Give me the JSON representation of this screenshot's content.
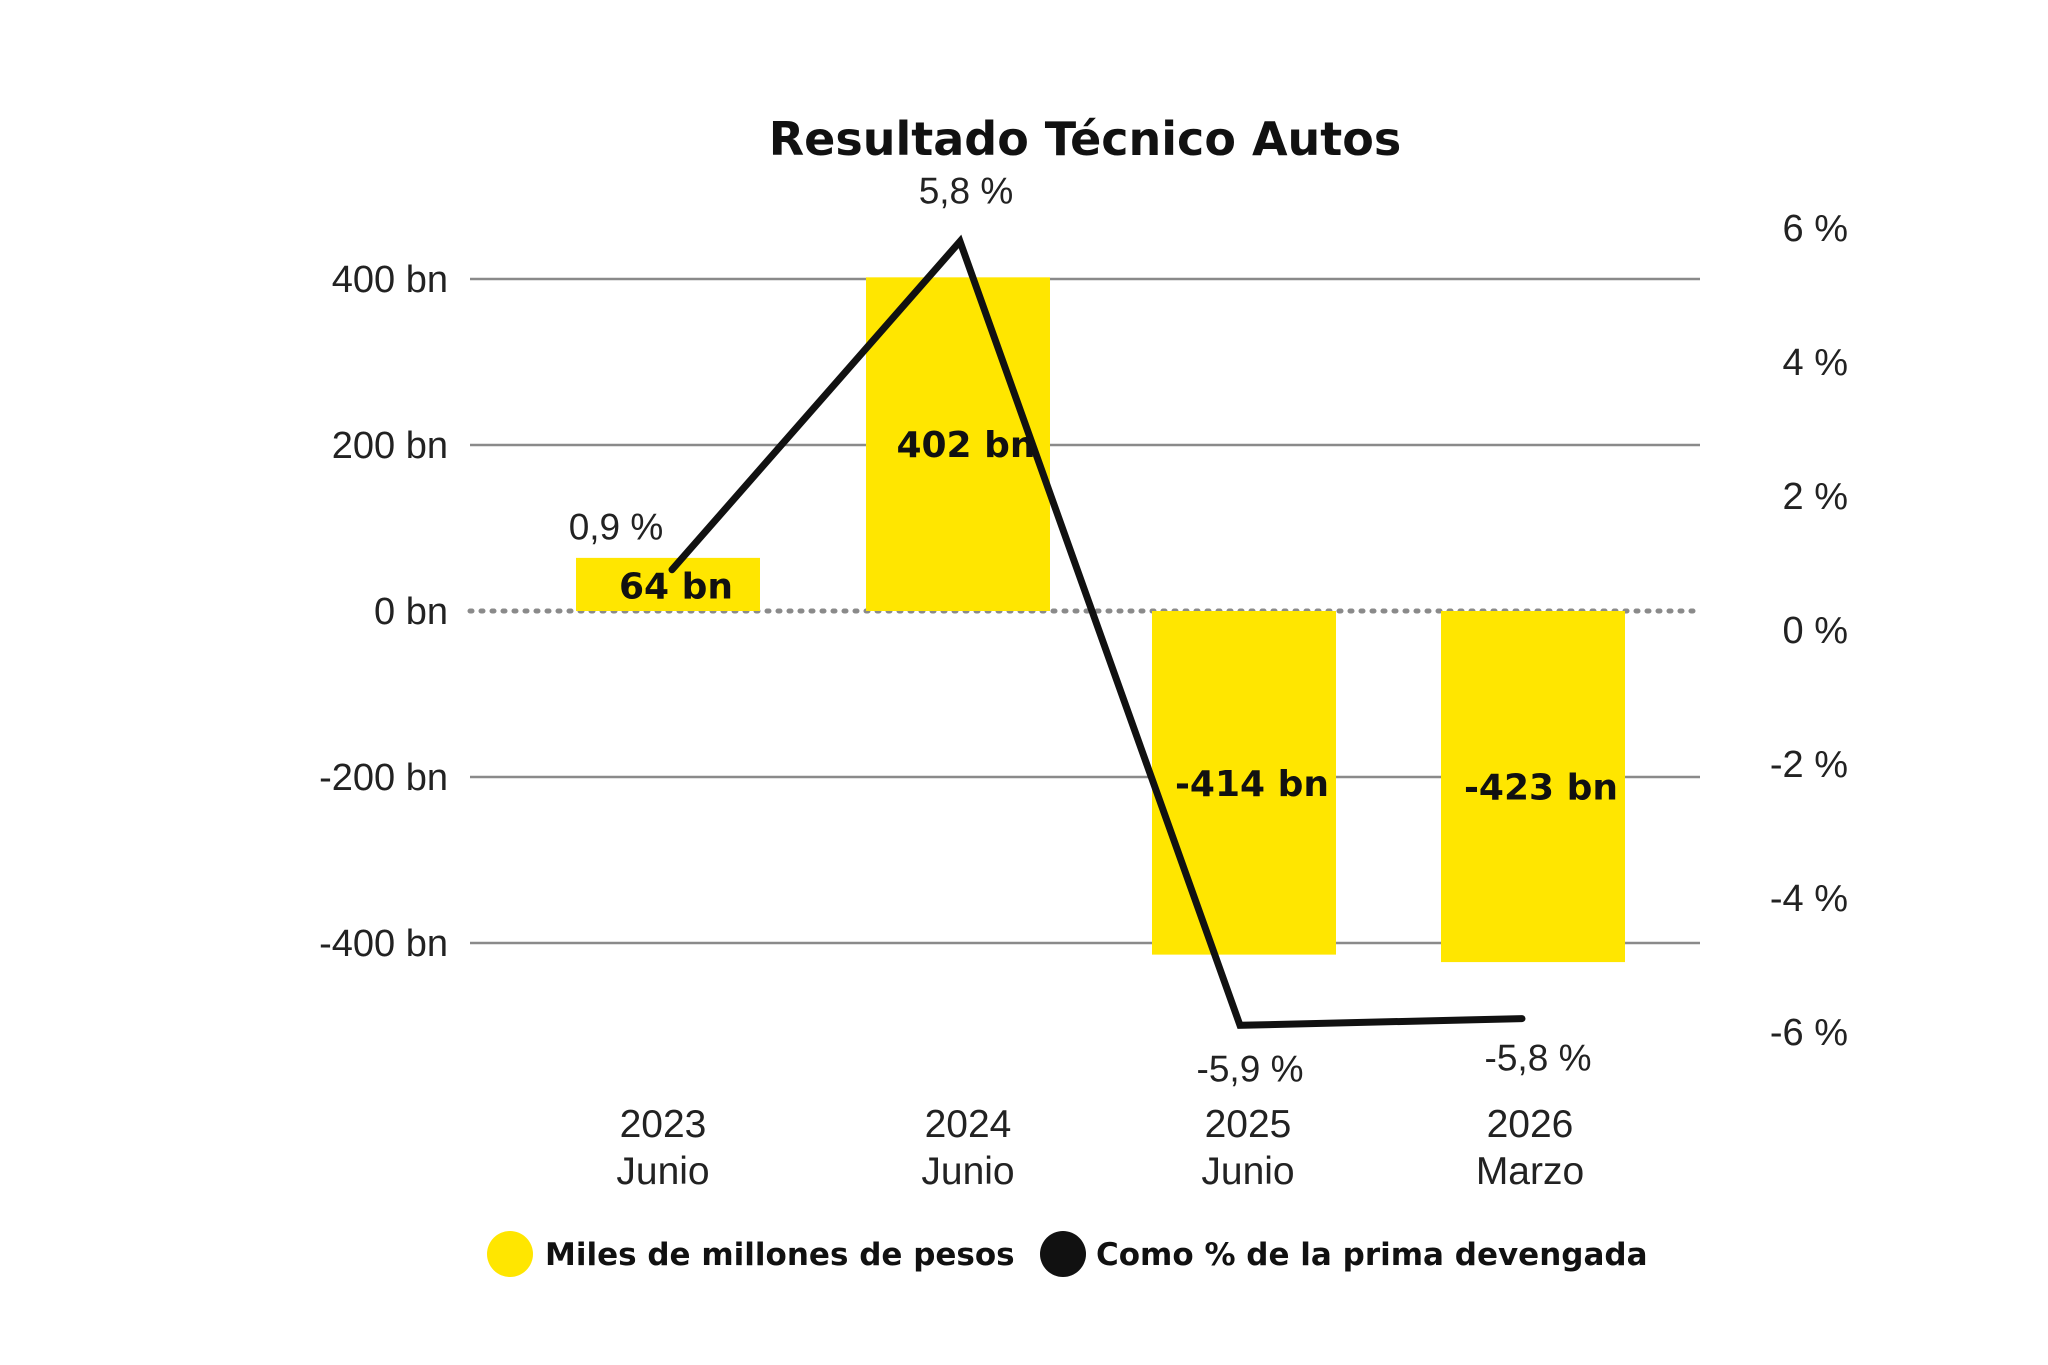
{
  "chart_data": {
    "type": "bar",
    "title": "Resultado Técnico Autos",
    "categories": [
      [
        "2023",
        "Junio"
      ],
      [
        "2024",
        "Junio"
      ],
      [
        "2025",
        "Junio"
      ],
      [
        "2026",
        "Marzo"
      ]
    ],
    "series": [
      {
        "name": "Miles de millones de pesos",
        "type": "bar",
        "axis": "left",
        "color": "#FFE600",
        "values": [
          64,
          402,
          -414,
          -423
        ],
        "labels": [
          "64 bn",
          "402 bn",
          "-414 bn",
          "-423 bn"
        ]
      },
      {
        "name": "Como % de la prima devengada",
        "type": "line",
        "axis": "right",
        "color": "#111111",
        "values": [
          0.9,
          5.8,
          -5.9,
          -5.8
        ],
        "labels": [
          "0,9 %",
          "5,8 %",
          "-5,9 %",
          "-5,8 %"
        ]
      }
    ],
    "left_axis": {
      "ylim": [
        -520,
        420
      ],
      "ticks": [
        400,
        200,
        0,
        -200,
        -400
      ],
      "tick_labels": [
        "400 bn",
        "200 bn",
        "0 bn",
        "-200 bn",
        "-400 bn"
      ]
    },
    "right_axis": {
      "ylim": [
        -6.4,
        6.4
      ],
      "ticks": [
        6,
        4,
        2,
        0,
        -2,
        -4,
        -6
      ],
      "tick_labels": [
        "6 %",
        "4 %",
        "2 %",
        "0 %",
        "-2 %",
        "-4 %",
        "-6 %"
      ]
    },
    "grid": true,
    "legend_position": "bottom",
    "colors": {
      "bar": "#FFE600",
      "line": "#111111",
      "grid": "#8a8a8a",
      "zero_line": "#8a8a8a"
    }
  }
}
